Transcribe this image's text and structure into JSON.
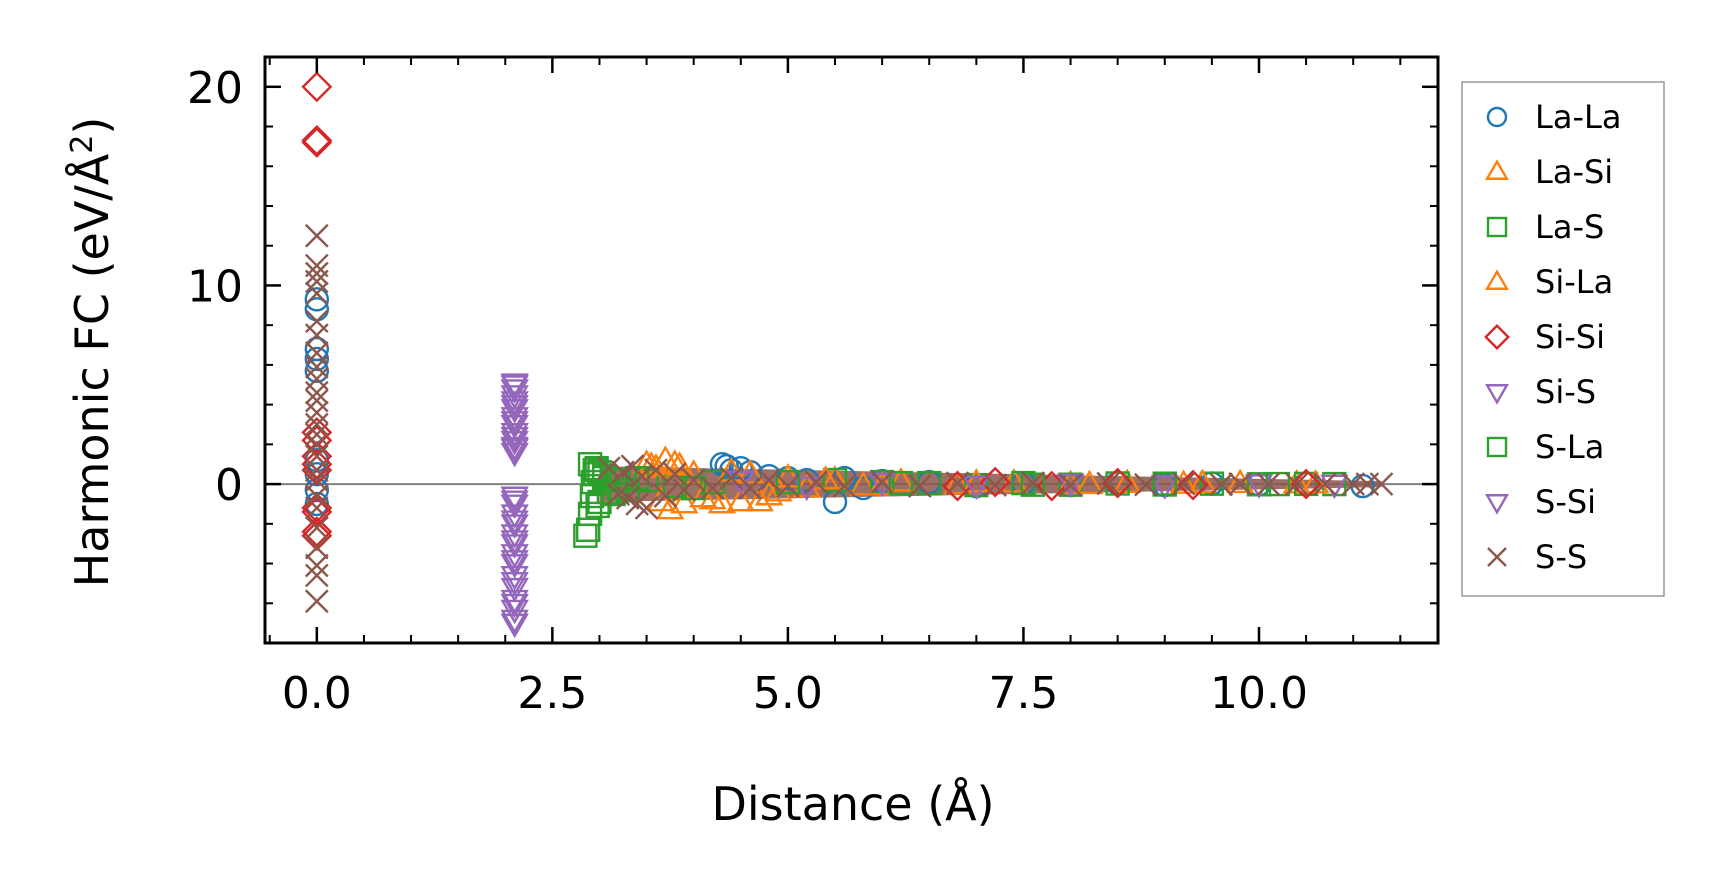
{
  "chart_data": {
    "type": "scatter",
    "xlabel": "Distance (Å)",
    "ylabel": "Harmonic FC (eV/Å",
    "ylabel_sup": "2",
    "ylabel_close": ")",
    "xlim": [
      -0.55,
      11.9
    ],
    "ylim": [
      -8.0,
      21.5
    ],
    "x_ticks": [
      {
        "v": 0.0,
        "label": "0.0"
      },
      {
        "v": 2.5,
        "label": "2.5"
      },
      {
        "v": 5.0,
        "label": "5.0"
      },
      {
        "v": 7.5,
        "label": "7.5"
      },
      {
        "v": 10.0,
        "label": "10.0"
      }
    ],
    "y_ticks": [
      {
        "v": 0,
        "label": "0"
      },
      {
        "v": 10,
        "label": "10"
      },
      {
        "v": 20,
        "label": "20"
      }
    ],
    "x_minor_step": 0.5,
    "y_minor_step": 2,
    "zero_line": 0,
    "legend_position": "outside-right",
    "series": [
      {
        "name": "La-La",
        "marker": "circle",
        "color": "#1f77b4",
        "points": [
          [
            0,
            9.3
          ],
          [
            0,
            8.8
          ],
          [
            0,
            6.8
          ],
          [
            0,
            6.3
          ],
          [
            0,
            5.7
          ],
          [
            0,
            1.2
          ],
          [
            0,
            0.5
          ],
          [
            0,
            -0.3
          ],
          [
            0,
            -1.0
          ],
          [
            4.3,
            1.0
          ],
          [
            4.35,
            0.9
          ],
          [
            4.4,
            0.7
          ],
          [
            4.5,
            0.8
          ],
          [
            4.6,
            0.6
          ],
          [
            4.8,
            0.4
          ],
          [
            5.0,
            0.3
          ],
          [
            5.2,
            0.2
          ],
          [
            5.5,
            -0.9
          ],
          [
            5.6,
            0.3
          ],
          [
            5.8,
            -0.2
          ],
          [
            6.0,
            0.15
          ],
          [
            6.5,
            0.1
          ],
          [
            7.0,
            -0.1
          ],
          [
            7.5,
            0.05
          ],
          [
            8.0,
            -0.05
          ],
          [
            8.5,
            0.05
          ],
          [
            9.0,
            -0.05
          ],
          [
            9.5,
            0.03
          ],
          [
            10.0,
            -0.02
          ],
          [
            10.5,
            0.02
          ],
          [
            11.1,
            -0.1
          ]
        ]
      },
      {
        "name": "La-Si",
        "marker": "triangle-up",
        "color": "#ff7f0e",
        "points": [
          [
            3.5,
            1.0
          ],
          [
            3.6,
            0.8
          ],
          [
            3.7,
            1.2
          ],
          [
            3.75,
            -1.3
          ],
          [
            3.8,
            1.0
          ],
          [
            3.9,
            -1.0
          ],
          [
            4.0,
            0.5
          ],
          [
            4.2,
            -0.8
          ],
          [
            4.3,
            -1.0
          ],
          [
            4.5,
            -0.9
          ],
          [
            4.6,
            0.5
          ],
          [
            4.7,
            -0.9
          ],
          [
            4.8,
            -0.6
          ],
          [
            5.0,
            0.3
          ],
          [
            5.2,
            -0.2
          ],
          [
            5.5,
            0.2
          ],
          [
            5.8,
            -0.1
          ],
          [
            6.2,
            0.1
          ],
          [
            6.8,
            -0.05
          ],
          [
            7.4,
            0.05
          ],
          [
            8.0,
            -0.03
          ],
          [
            8.6,
            0.03
          ],
          [
            9.2,
            -0.02
          ],
          [
            9.8,
            0.02
          ],
          [
            10.4,
            0.0
          ]
        ]
      },
      {
        "name": "La-S",
        "marker": "square",
        "color": "#2ca02c",
        "points": [
          [
            2.85,
            -2.6
          ],
          [
            2.88,
            -2.3
          ],
          [
            2.9,
            -1.5
          ],
          [
            2.92,
            -0.6
          ],
          [
            2.93,
            0.1
          ],
          [
            2.95,
            0.5
          ],
          [
            2.97,
            0.8
          ],
          [
            3.0,
            0.6
          ],
          [
            3.0,
            -0.9
          ],
          [
            3.05,
            0.3
          ],
          [
            3.1,
            -0.4
          ],
          [
            3.2,
            0.2
          ],
          [
            3.3,
            -0.3
          ],
          [
            3.5,
            0.2
          ],
          [
            3.8,
            -0.1
          ],
          [
            4.2,
            0.1
          ],
          [
            5.5,
            0.2
          ],
          [
            6.0,
            0.1
          ],
          [
            6.5,
            0.05
          ],
          [
            7.0,
            -0.05
          ],
          [
            7.5,
            0.05
          ],
          [
            8.0,
            -0.03
          ],
          [
            8.5,
            0.03
          ],
          [
            9.0,
            -0.02
          ],
          [
            9.5,
            0.02
          ],
          [
            10.0,
            -0.01
          ],
          [
            10.5,
            0.01
          ],
          [
            10.8,
            0.0
          ]
        ]
      },
      {
        "name": "Si-La",
        "marker": "triangle-up",
        "color": "#ff7f0e",
        "points": [
          [
            3.55,
            0.9
          ],
          [
            3.65,
            -0.9
          ],
          [
            3.85,
            0.9
          ],
          [
            4.1,
            -0.7
          ],
          [
            4.4,
            0.6
          ],
          [
            4.9,
            -0.4
          ],
          [
            5.4,
            0.2
          ],
          [
            6.0,
            -0.1
          ],
          [
            7.0,
            0.05
          ],
          [
            8.2,
            -0.03
          ],
          [
            9.4,
            0.02
          ],
          [
            10.6,
            0.0
          ]
        ]
      },
      {
        "name": "Si-Si",
        "marker": "diamond",
        "color": "#d62728",
        "points": [
          [
            0,
            20.0
          ],
          [
            0,
            17.3
          ],
          [
            0,
            17.2
          ],
          [
            0,
            2.6
          ],
          [
            0,
            2.2
          ],
          [
            0,
            1.4
          ],
          [
            0,
            1.0
          ],
          [
            0,
            0.7
          ],
          [
            0,
            -1.2
          ],
          [
            0,
            -1.4
          ],
          [
            0,
            -2.4
          ],
          [
            0,
            -2.6
          ],
          [
            6.8,
            -0.1
          ],
          [
            7.2,
            0.1
          ],
          [
            7.8,
            -0.1
          ],
          [
            8.5,
            0.05
          ],
          [
            9.3,
            -0.05
          ],
          [
            10.5,
            0.0
          ]
        ]
      },
      {
        "name": "Si-S",
        "marker": "triangle-down",
        "color": "#9467bd",
        "points": [
          [
            2.1,
            5.1
          ],
          [
            2.1,
            4.8
          ],
          [
            2.1,
            4.5
          ],
          [
            2.1,
            4.2
          ],
          [
            2.1,
            3.8
          ],
          [
            2.1,
            3.4
          ],
          [
            2.1,
            3.0
          ],
          [
            2.1,
            2.6
          ],
          [
            2.1,
            2.2
          ],
          [
            2.1,
            1.9
          ],
          [
            2.1,
            1.6
          ],
          [
            2.1,
            -0.6
          ],
          [
            2.1,
            -1.0
          ],
          [
            2.1,
            -1.5
          ],
          [
            2.1,
            -2.0
          ],
          [
            2.1,
            -2.5
          ],
          [
            2.1,
            -3.0
          ],
          [
            2.1,
            -3.5
          ],
          [
            2.1,
            -4.0
          ],
          [
            2.1,
            -4.6
          ],
          [
            2.1,
            -5.2
          ],
          [
            2.1,
            -5.8
          ],
          [
            2.1,
            -6.3
          ],
          [
            2.1,
            -6.8
          ],
          [
            4.5,
            0.2
          ],
          [
            5.2,
            -0.1
          ],
          [
            6.0,
            0.1
          ],
          [
            7.0,
            -0.05
          ],
          [
            8.0,
            0.05
          ],
          [
            9.0,
            -0.03
          ],
          [
            10.0,
            0.02
          ],
          [
            10.8,
            0.0
          ]
        ]
      },
      {
        "name": "S-La",
        "marker": "square",
        "color": "#2ca02c",
        "points": [
          [
            2.9,
            1.0
          ],
          [
            2.95,
            0.7
          ],
          [
            2.98,
            -1.1
          ],
          [
            3.05,
            0.4
          ],
          [
            3.15,
            -0.5
          ],
          [
            3.4,
            0.3
          ],
          [
            4.0,
            -0.2
          ],
          [
            5.0,
            0.1
          ],
          [
            6.2,
            0.05
          ],
          [
            7.6,
            -0.03
          ],
          [
            9.0,
            0.02
          ],
          [
            10.2,
            0.0
          ]
        ]
      },
      {
        "name": "S-Si",
        "marker": "triangle-down",
        "color": "#9467bd",
        "points": [
          [
            2.1,
            5.0
          ],
          [
            2.1,
            4.0
          ],
          [
            2.1,
            3.2
          ],
          [
            2.1,
            2.4
          ],
          [
            2.1,
            1.8
          ],
          [
            2.1,
            -0.8
          ],
          [
            2.1,
            -1.8
          ],
          [
            2.1,
            -2.8
          ],
          [
            2.1,
            -3.8
          ],
          [
            2.1,
            -4.9
          ],
          [
            2.1,
            -6.0
          ],
          [
            2.1,
            -7.0
          ]
        ]
      },
      {
        "name": "S-S",
        "marker": "cross",
        "color": "#8c564b",
        "points": [
          [
            0,
            12.5
          ],
          [
            0,
            11.0
          ],
          [
            0,
            10.6
          ],
          [
            0,
            10.2
          ],
          [
            0,
            9.6
          ],
          [
            0,
            8.2
          ],
          [
            0,
            7.5
          ],
          [
            0,
            6.6
          ],
          [
            0,
            5.9
          ],
          [
            0,
            5.3
          ],
          [
            0,
            4.6
          ],
          [
            0,
            4.2
          ],
          [
            0,
            3.6
          ],
          [
            0,
            3.0
          ],
          [
            0,
            2.5
          ],
          [
            0,
            2.0
          ],
          [
            0,
            1.4
          ],
          [
            0,
            0.7
          ],
          [
            0,
            0.2
          ],
          [
            0,
            -0.6
          ],
          [
            0,
            -1.2
          ],
          [
            0,
            -2.2
          ],
          [
            0,
            -3.2
          ],
          [
            0,
            -4.1
          ],
          [
            0,
            -4.6
          ],
          [
            0,
            -5.9
          ],
          [
            3.1,
            0.8
          ],
          [
            3.2,
            -0.5
          ],
          [
            3.25,
            0.6
          ],
          [
            3.3,
            -0.7
          ],
          [
            3.35,
            0.9
          ],
          [
            3.4,
            -1.0
          ],
          [
            3.45,
            0.4
          ],
          [
            3.5,
            -1.2
          ],
          [
            3.6,
            0.7
          ],
          [
            3.7,
            -0.6
          ],
          [
            3.8,
            0.5
          ],
          [
            3.9,
            -0.3
          ],
          [
            4.0,
            0.2
          ],
          [
            4.2,
            -0.2
          ],
          [
            4.4,
            0.3
          ],
          [
            4.6,
            -0.2
          ],
          [
            4.8,
            0.2
          ],
          [
            5.0,
            -0.1
          ],
          [
            5.3,
            0.1
          ],
          [
            5.6,
            -0.1
          ],
          [
            6.0,
            0.1
          ],
          [
            6.4,
            -0.1
          ],
          [
            6.8,
            0.05
          ],
          [
            7.2,
            -0.05
          ],
          [
            7.6,
            0.05
          ],
          [
            8.0,
            -0.05
          ],
          [
            8.4,
            0.03
          ],
          [
            8.8,
            -0.03
          ],
          [
            9.2,
            0.02
          ],
          [
            9.6,
            -0.02
          ],
          [
            9.8,
            0.01
          ],
          [
            10.1,
            0.0
          ],
          [
            10.4,
            0.0
          ],
          [
            10.7,
            0.0
          ],
          [
            11.0,
            0.0
          ],
          [
            11.15,
            0.0
          ],
          [
            11.3,
            0.0
          ]
        ]
      }
    ],
    "band": {
      "color": "#8c564b",
      "x_start": 3.0,
      "x_end": 11.3,
      "start_halfheight": 0.9,
      "end_halfheight": 0.15
    }
  }
}
